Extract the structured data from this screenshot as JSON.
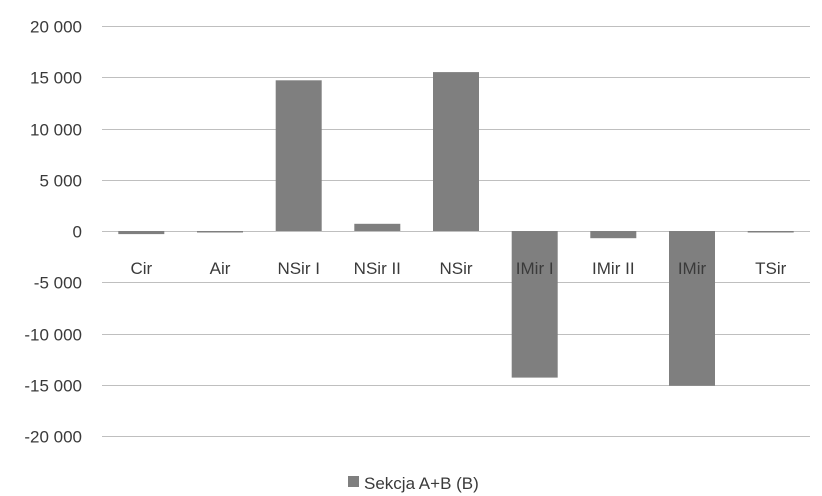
{
  "chart_data": {
    "type": "bar",
    "categories": [
      "Cir",
      "Air",
      "NSir I",
      "NSir II",
      "NSir",
      "IMir I",
      "IMir II",
      "IMir",
      "TSir"
    ],
    "series": [
      {
        "name": "Sekcja A+B (B)",
        "values": [
          -300,
          -100,
          14700,
          700,
          15500,
          -14300,
          -700,
          -15100,
          -100
        ],
        "color": "#7f7f7f"
      }
    ],
    "ylim": [
      -20000,
      20000
    ],
    "yticks": [
      20000,
      15000,
      10000,
      5000,
      0,
      -5000,
      -10000,
      -15000,
      -20000
    ],
    "ytick_labels": [
      "20 000",
      "15 000",
      "10 000",
      "5 000",
      "0",
      "-5 000",
      "-10 000",
      "-15 000",
      "-20 000"
    ],
    "grid": true,
    "gridline_color": "#bfbfbf",
    "legend_position": "bottom",
    "title": "",
    "xlabel": "",
    "ylabel": ""
  }
}
